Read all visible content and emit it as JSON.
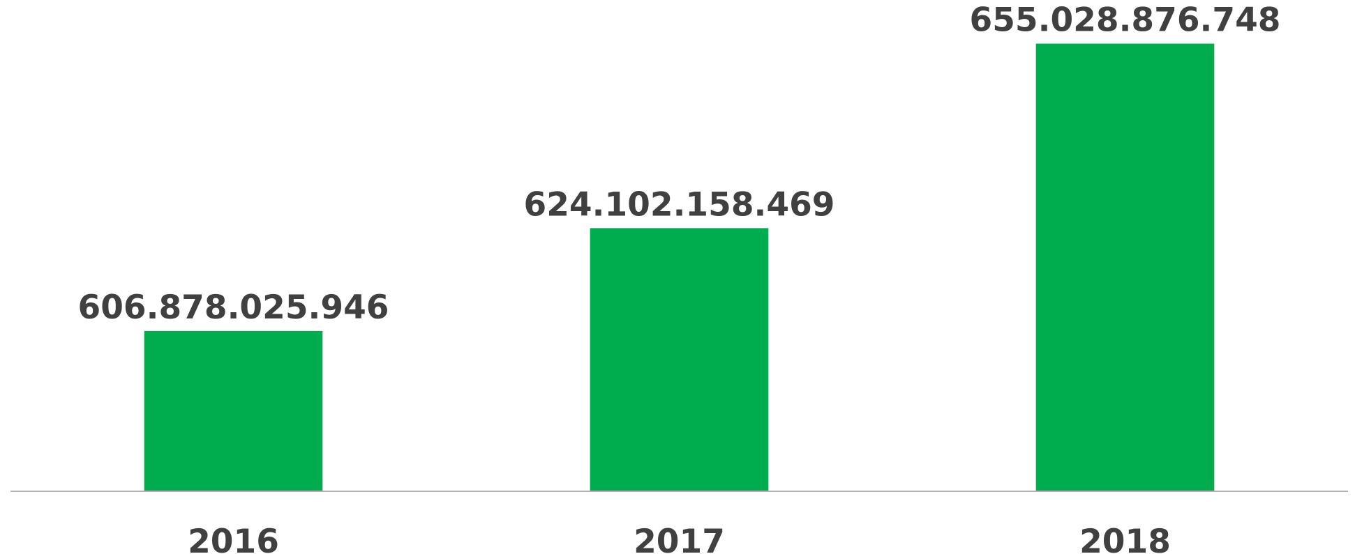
{
  "chart_data": {
    "type": "bar",
    "categories": [
      "2016",
      "2017",
      "2018"
    ],
    "values": [
      606878025946,
      624102158469,
      655028876748
    ],
    "value_labels": [
      "606.878.025.946",
      "624.102.158.469",
      "655.028.876.748"
    ],
    "color": "#00ad4e",
    "ylim": [
      580000000000,
      660000000000
    ]
  }
}
